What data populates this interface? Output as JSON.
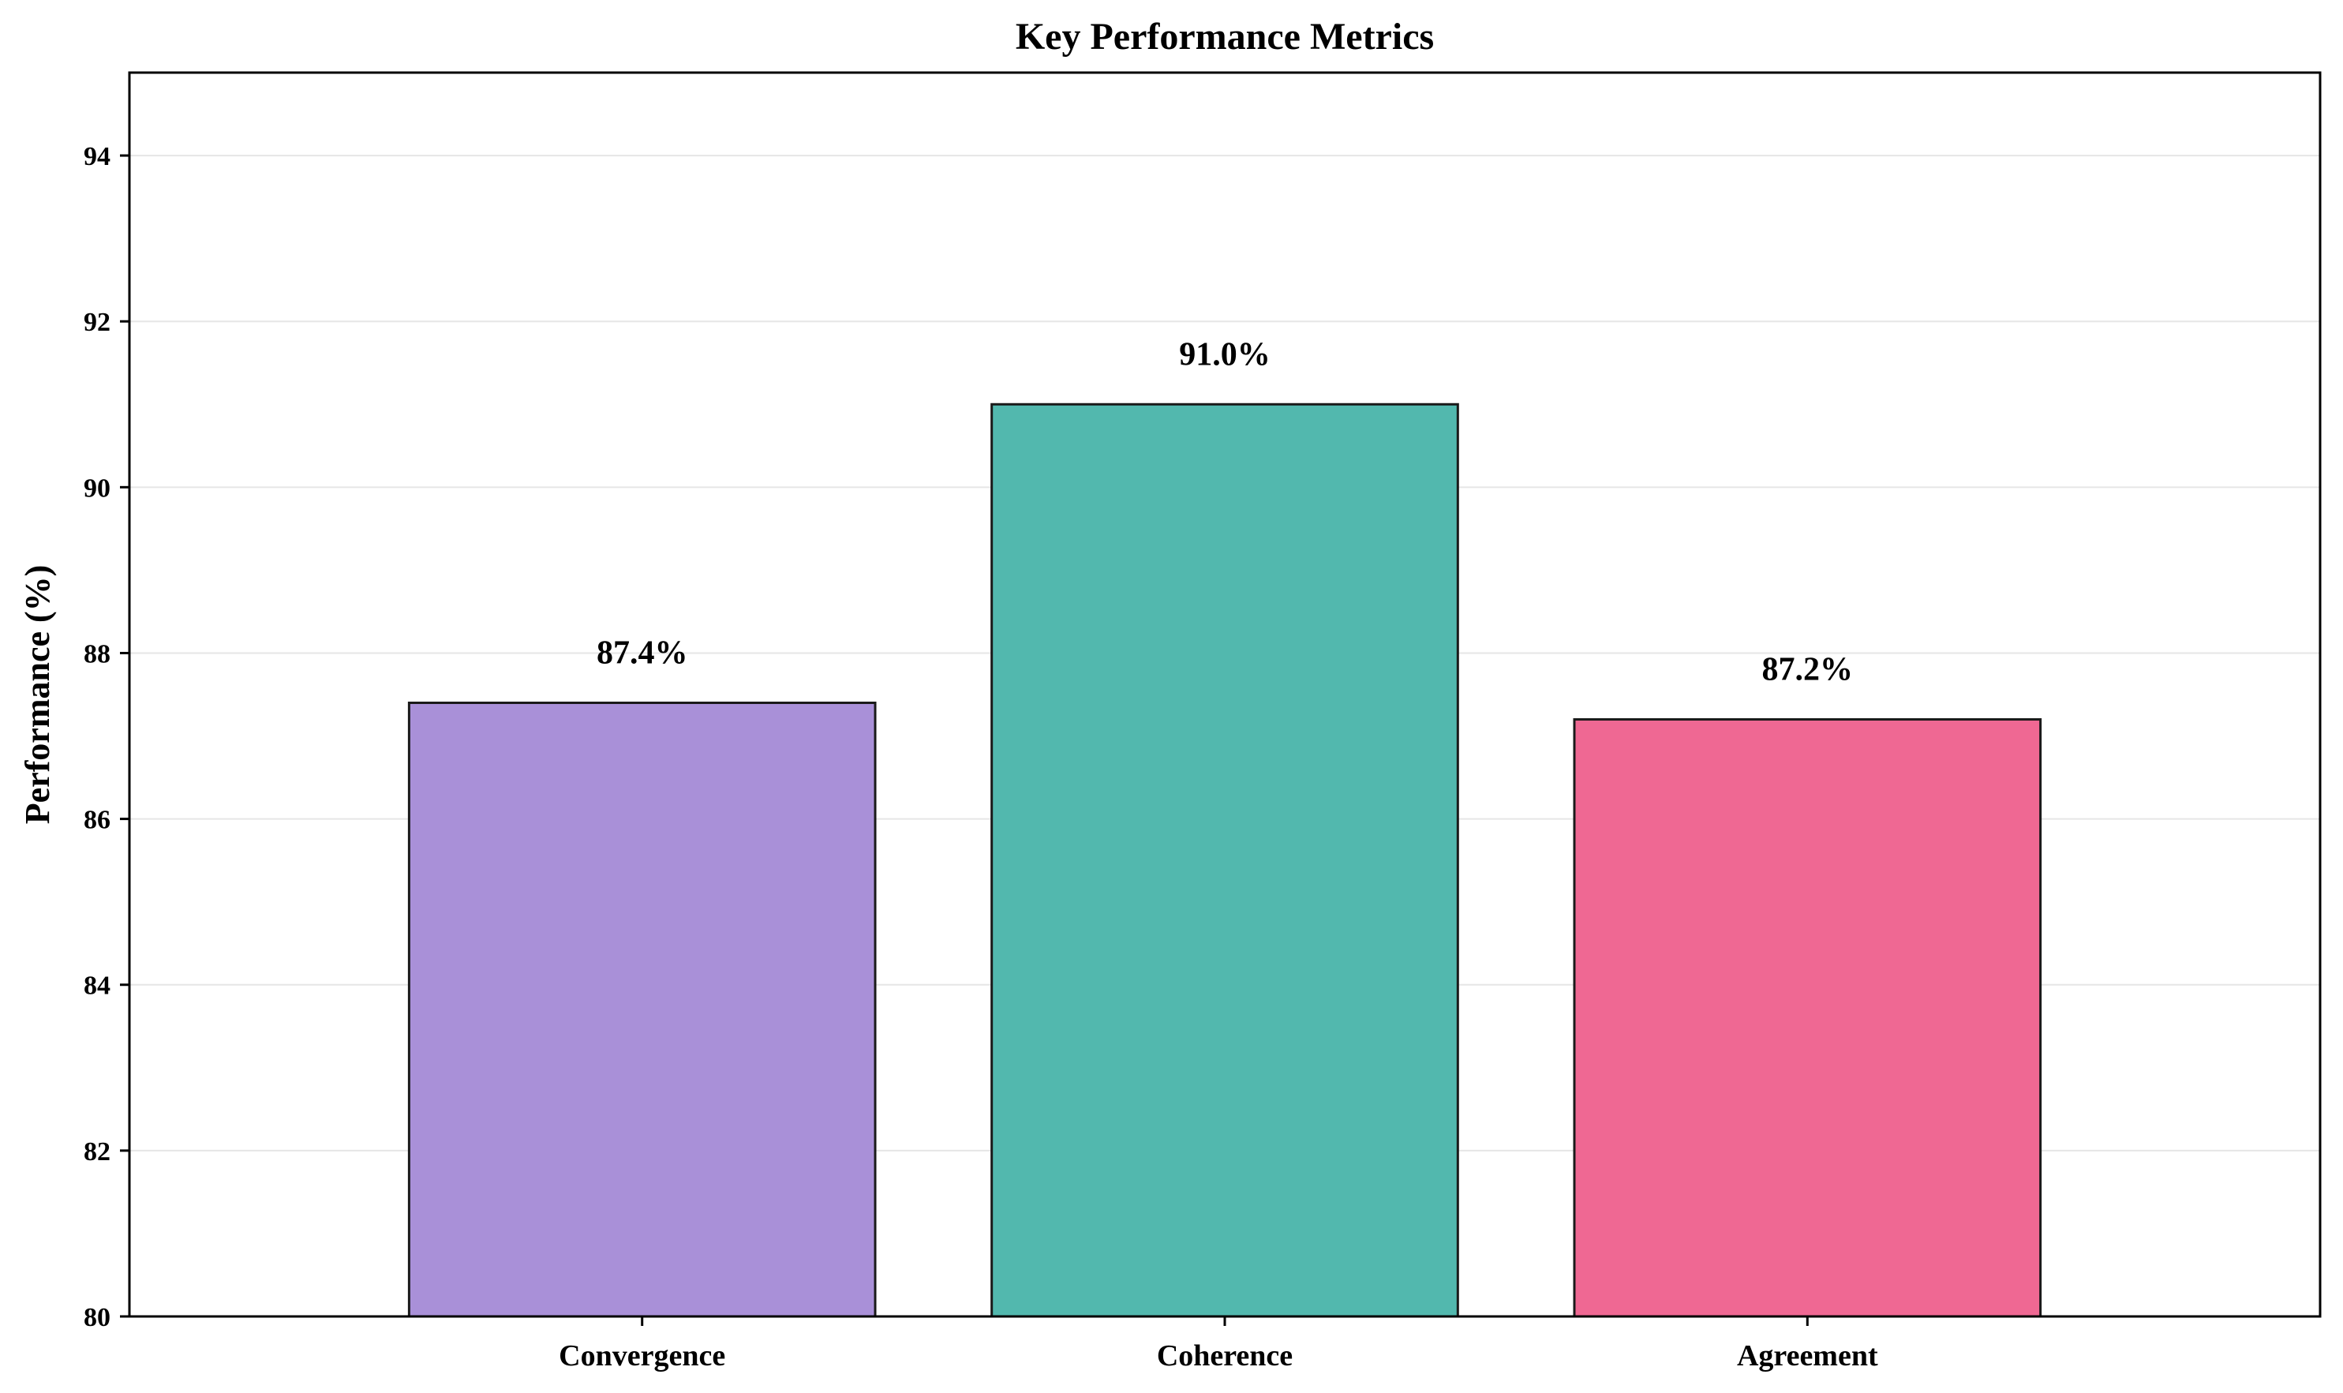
{
  "chart_data": {
    "type": "bar",
    "title": "Key Performance Metrics",
    "xlabel": "",
    "ylabel": "Performance (%)",
    "categories": [
      "Convergence",
      "Coherence",
      "Agreement"
    ],
    "values": [
      87.4,
      91.0,
      87.2
    ],
    "value_labels": [
      "87.4%",
      "91.0%",
      "87.2%"
    ],
    "colors": [
      "#a990d8",
      "#52b8ae",
      "#ef6893"
    ],
    "ylim": [
      80,
      95
    ],
    "yticks": [
      80,
      82,
      84,
      86,
      88,
      90,
      92,
      94
    ],
    "grid": true,
    "legend": "none"
  }
}
